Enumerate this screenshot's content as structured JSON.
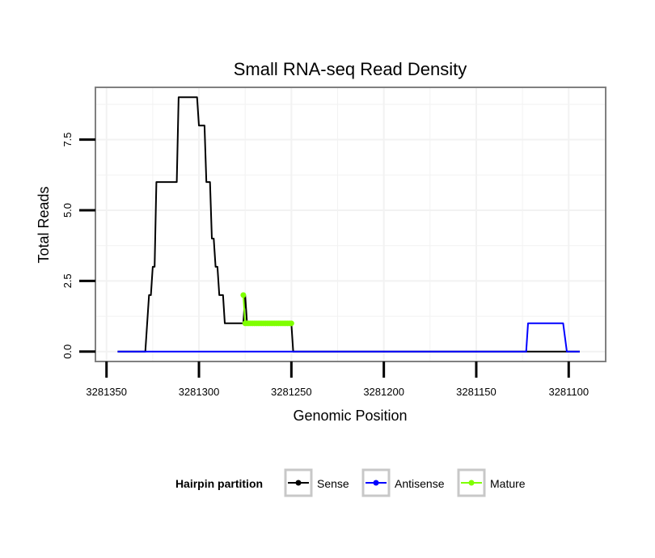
{
  "chart_data": {
    "type": "line",
    "title": "Small RNA-seq Read Density",
    "xlabel": "Genomic Position",
    "ylabel": "Total Reads",
    "xlim": [
      3281356,
      3281080
    ],
    "x_reversed": true,
    "ylim": [
      -0.35,
      9.35
    ],
    "grid": true,
    "x_ticks": [
      3281350,
      3281300,
      3281250,
      3281200,
      3281150,
      3281100
    ],
    "x_tick_labels": [
      "3281350",
      "3281300",
      "3281250",
      "3281200",
      "3281150",
      "3281100"
    ],
    "y_ticks": [
      0,
      2.5,
      5,
      7.5
    ],
    "y_tick_labels": [
      "0.0",
      "2.5",
      "5.0",
      "7.5"
    ],
    "legend": {
      "title": "Hairpin partition",
      "placement": "bottom",
      "entries": [
        {
          "label": "Sense",
          "color": "#000000"
        },
        {
          "label": "Antisense",
          "color": "#0000ff"
        },
        {
          "label": "Mature",
          "color": "#7fff00"
        }
      ]
    },
    "series": [
      {
        "name": "Sense",
        "color": "#000000",
        "x": [
          3281344,
          3281329,
          3281328,
          3281327,
          3281326,
          3281325,
          3281324,
          3281323,
          3281322,
          3281312,
          3281311,
          3281301,
          3281300,
          3281297,
          3281296,
          3281294,
          3281293,
          3281292,
          3281291,
          3281290,
          3281289,
          3281287,
          3281286,
          3281284,
          3281283,
          3281276,
          3281275,
          3281274,
          3281250,
          3281249,
          3281094
        ],
        "y": [
          0,
          0,
          1,
          2,
          2,
          3,
          3,
          6,
          6,
          6,
          9,
          9,
          8,
          8,
          6,
          6,
          4,
          4,
          3,
          3,
          2,
          2,
          1,
          1,
          1,
          1,
          2,
          1,
          1,
          0,
          0
        ]
      },
      {
        "name": "Antisense",
        "color": "#0000ff",
        "x": [
          3281344,
          3281123,
          3281122,
          3281103,
          3281101,
          3281094
        ],
        "y": [
          0,
          0,
          1,
          1,
          0,
          0
        ]
      },
      {
        "name": "Mature",
        "color": "#7fff00",
        "x": [
          3281276,
          3281275,
          3281274,
          3281273,
          3281272,
          3281271,
          3281270,
          3281269,
          3281268,
          3281267,
          3281266,
          3281265,
          3281264,
          3281263,
          3281262,
          3281261,
          3281260,
          3281259,
          3281258,
          3281257,
          3281256,
          3281255,
          3281254,
          3281253,
          3281252,
          3281251,
          3281250
        ],
        "y": [
          2,
          1,
          1,
          1,
          1,
          1,
          1,
          1,
          1,
          1,
          1,
          1,
          1,
          1,
          1,
          1,
          1,
          1,
          1,
          1,
          1,
          1,
          1,
          1,
          1,
          1,
          1
        ]
      }
    ]
  }
}
